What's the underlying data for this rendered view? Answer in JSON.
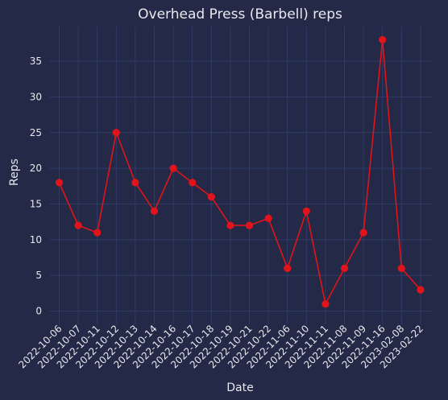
{
  "chart_data": {
    "type": "line",
    "title": "Overhead Press (Barbell) reps",
    "xlabel": "Date",
    "ylabel": "Reps",
    "categories": [
      "2022-10-06",
      "2022-10-07",
      "2022-10-11",
      "2022-10-12",
      "2022-10-13",
      "2022-10-14",
      "2022-10-16",
      "2022-10-17",
      "2022-10-18",
      "2022-10-19",
      "2022-10-21",
      "2022-10-22",
      "2022-11-06",
      "2022-11-10",
      "2022-11-11",
      "2022-11-08",
      "2022-11-09",
      "2022-11-16",
      "2023-02-08",
      "2023-02-22"
    ],
    "series": [
      {
        "values": [
          18,
          12,
          11,
          25,
          18,
          14,
          20,
          18,
          16,
          12,
          12,
          13,
          6,
          14,
          1,
          6,
          11,
          38,
          6,
          3
        ]
      }
    ],
    "y_ticks": [
      0,
      5,
      10,
      15,
      20,
      25,
      30,
      35
    ],
    "ylim": [
      -1.85,
      39.85
    ],
    "grid": true,
    "colors": {
      "background": "#232946",
      "grid": "#2f3d66",
      "line": "#e0141a",
      "text": "#e8e8ee"
    }
  }
}
